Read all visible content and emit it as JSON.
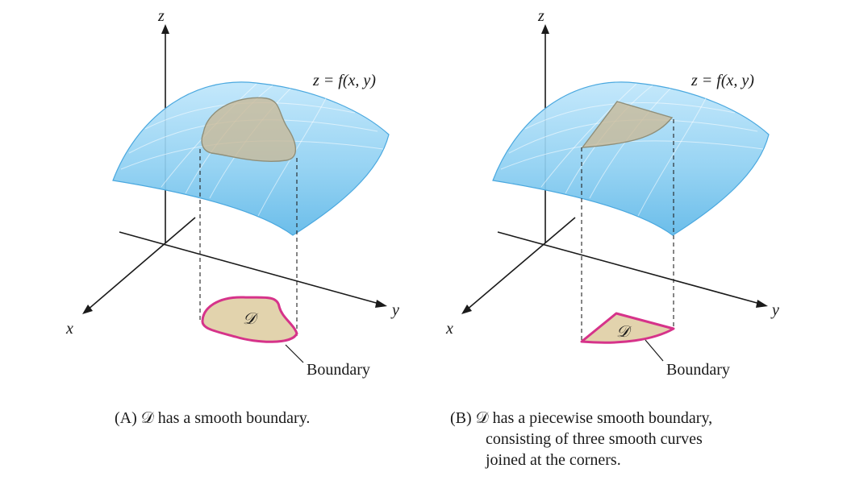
{
  "panel_a": {
    "z_label": "z",
    "x_label": "x",
    "y_label": "y",
    "surface_label": "z = f(x, y)",
    "region_label": "𝒟",
    "boundary_label": "Boundary",
    "caption": "(A) 𝒟 has a smooth boundary."
  },
  "panel_b": {
    "z_label": "z",
    "x_label": "x",
    "y_label": "y",
    "surface_label": "z = f(x, y)",
    "region_label": "𝒟",
    "boundary_label": "Boundary",
    "caption_lines": [
      "(B) 𝒟 has a piecewise smooth boundary,",
      "consisting of three smooth curves",
      "joined at the corners."
    ]
  },
  "colors": {
    "surface": "#8fd0f2",
    "surface_edge": "#4aa8df",
    "region_fill": "#e2d3ad",
    "boundary": "#d6338a"
  }
}
